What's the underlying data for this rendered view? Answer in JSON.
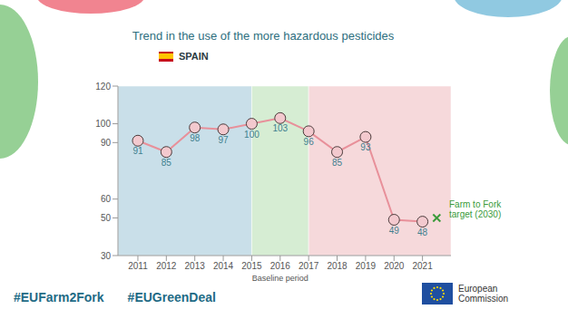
{
  "chart_data": {
    "type": "line",
    "title": "Trend in the use of the more hazardous pesticides",
    "subtitle": "SPAIN",
    "x": [
      2011,
      2012,
      2013,
      2014,
      2015,
      2016,
      2017,
      2018,
      2019,
      2020,
      2021
    ],
    "values": [
      91,
      85,
      98,
      97,
      100,
      103,
      96,
      85,
      93,
      49,
      48
    ],
    "color": "#e8909a",
    "marker": "circle",
    "xlim": [
      2010.3,
      2022
    ],
    "xticks": [
      2011,
      2012,
      2013,
      2014,
      2015,
      2016,
      2017,
      2018,
      2019,
      2020,
      2021
    ],
    "ylim": [
      30,
      120
    ],
    "yticks": [
      30,
      50,
      60,
      90,
      100,
      120
    ],
    "data_labels": true,
    "periods": [
      {
        "start": 2010.3,
        "end": 2015,
        "color": "#c9dfe9"
      },
      {
        "start": 2015,
        "end": 2017,
        "color": "#d6edd3",
        "label": "Baseline period"
      },
      {
        "start": 2017,
        "end": 2022,
        "color": "#f6d9db"
      }
    ],
    "target": {
      "label": "Farm to Fork target (2030)",
      "x": 2021.5,
      "value": 50,
      "color": "#3a9a3a"
    },
    "footer": [
      "#EUFarm2Fork",
      "#EUGreenDeal"
    ],
    "logo": "European Commission"
  }
}
